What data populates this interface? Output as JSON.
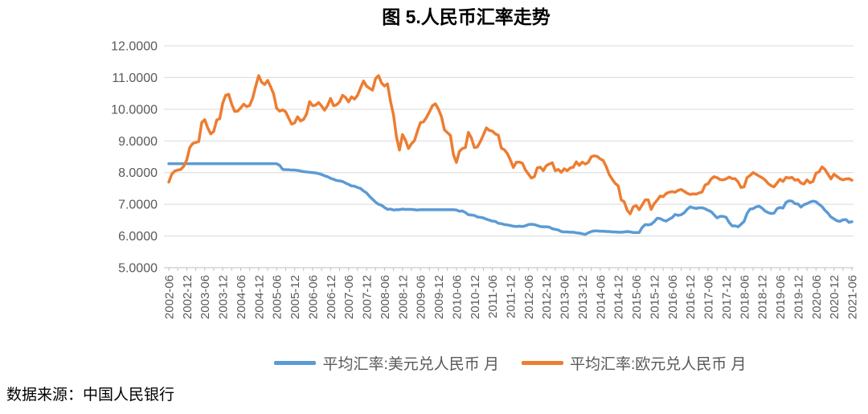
{
  "title": "图 5.人民币汇率走势",
  "source_note": "数据来源：中国人民银行",
  "colors": {
    "usd_line": "#5B9BD5",
    "eur_line": "#ED7D31",
    "gridline": "#D9D9D9",
    "axis_line": "#BFBFBF",
    "axis_text": "#595959"
  },
  "chart_data": {
    "type": "line",
    "title": "图 5.人民币汇率走势",
    "x_frequency": "monthly",
    "x_start": "2002-06",
    "x_end": "2021-06",
    "ylim": [
      5,
      12
    ],
    "grid": "horizontal",
    "legend_position": "bottom",
    "y_tick_labels": [
      "12.0000",
      "11.0000",
      "10.0000",
      "9.0000",
      "8.0000",
      "7.0000",
      "6.0000",
      "5.0000"
    ],
    "x_tick_labels": [
      "2002-06",
      "2002-12",
      "2003-06",
      "2003-12",
      "2004-06",
      "2004-12",
      "2005-06",
      "2005-12",
      "2006-06",
      "2006-12",
      "2007-06",
      "2007-12",
      "2008-06",
      "2008-12",
      "2009-06",
      "2009-12",
      "2010-06",
      "2010-12",
      "2011-06",
      "2011-12",
      "2012-06",
      "2012-12",
      "2013-06",
      "2013-12",
      "2014-06",
      "2014-12",
      "2015-06",
      "2015-12",
      "2016-06",
      "2016-12",
      "2017-06",
      "2017-12",
      "2018-06",
      "2018-12",
      "2019-06",
      "2019-12",
      "2020-06",
      "2020-12",
      "2021-06"
    ],
    "series": [
      {
        "name": "平均汇率:美元兑人民币 月",
        "color": "#5B9BD5",
        "values": [
          8.28,
          8.28,
          8.28,
          8.28,
          8.28,
          8.28,
          8.28,
          8.28,
          8.28,
          8.28,
          8.28,
          8.28,
          8.28,
          8.28,
          8.28,
          8.28,
          8.28,
          8.28,
          8.28,
          8.28,
          8.28,
          8.28,
          8.28,
          8.28,
          8.28,
          8.28,
          8.28,
          8.28,
          8.28,
          8.28,
          8.28,
          8.28,
          8.28,
          8.28,
          8.28,
          8.28,
          8.28,
          8.23,
          8.1,
          8.09,
          8.09,
          8.08,
          8.08,
          8.07,
          8.05,
          8.03,
          8.02,
          8.01,
          8.0,
          7.99,
          7.97,
          7.94,
          7.9,
          7.87,
          7.82,
          7.79,
          7.75,
          7.74,
          7.72,
          7.67,
          7.63,
          7.58,
          7.57,
          7.53,
          7.5,
          7.42,
          7.36,
          7.25,
          7.16,
          7.07,
          7.0,
          6.97,
          6.9,
          6.84,
          6.85,
          6.82,
          6.83,
          6.83,
          6.85,
          6.84,
          6.84,
          6.84,
          6.83,
          6.82,
          6.83,
          6.83,
          6.83,
          6.83,
          6.83,
          6.83,
          6.83,
          6.83,
          6.83,
          6.83,
          6.83,
          6.83,
          6.82,
          6.78,
          6.79,
          6.74,
          6.67,
          6.66,
          6.65,
          6.6,
          6.59,
          6.57,
          6.53,
          6.5,
          6.47,
          6.46,
          6.4,
          6.39,
          6.36,
          6.35,
          6.33,
          6.31,
          6.3,
          6.31,
          6.3,
          6.32,
          6.36,
          6.37,
          6.36,
          6.33,
          6.3,
          6.29,
          6.29,
          6.28,
          6.23,
          6.21,
          6.19,
          6.14,
          6.13,
          6.13,
          6.12,
          6.12,
          6.1,
          6.09,
          6.07,
          6.05,
          6.1,
          6.14,
          6.16,
          6.16,
          6.15,
          6.15,
          6.14,
          6.14,
          6.13,
          6.13,
          6.12,
          6.12,
          6.13,
          6.14,
          6.13,
          6.11,
          6.11,
          6.11,
          6.27,
          6.36,
          6.35,
          6.37,
          6.45,
          6.56,
          6.55,
          6.5,
          6.47,
          6.53,
          6.58,
          6.68,
          6.65,
          6.67,
          6.73,
          6.84,
          6.92,
          6.89,
          6.87,
          6.89,
          6.89,
          6.86,
          6.81,
          6.77,
          6.67,
          6.57,
          6.62,
          6.62,
          6.59,
          6.43,
          6.32,
          6.32,
          6.29,
          6.37,
          6.46,
          6.71,
          6.85,
          6.86,
          6.92,
          6.94,
          6.88,
          6.79,
          6.74,
          6.71,
          6.72,
          6.86,
          6.9,
          6.88,
          7.06,
          7.11,
          7.1,
          7.02,
          7.01,
          6.91,
          6.99,
          7.02,
          7.07,
          7.1,
          7.08,
          7.0,
          6.93,
          6.81,
          6.72,
          6.6,
          6.54,
          6.48,
          6.46,
          6.51,
          6.52,
          6.43,
          6.45
        ]
      },
      {
        "name": "平均汇率:欧元兑人民币 月",
        "color": "#ED7D31",
        "values": [
          7.7,
          7.95,
          8.05,
          8.08,
          8.1,
          8.2,
          8.4,
          8.79,
          8.92,
          8.95,
          8.98,
          9.58,
          9.67,
          9.41,
          9.22,
          9.3,
          9.66,
          9.7,
          10.19,
          10.44,
          10.47,
          10.16,
          9.93,
          9.94,
          10.04,
          10.16,
          10.08,
          10.12,
          10.35,
          10.72,
          11.06,
          10.85,
          10.78,
          10.91,
          10.71,
          10.48,
          10.03,
          9.94,
          9.98,
          9.92,
          9.72,
          9.53,
          9.57,
          9.76,
          9.63,
          9.68,
          9.85,
          10.24,
          10.11,
          10.13,
          10.21,
          10.1,
          9.97,
          10.12,
          10.34,
          10.11,
          10.14,
          10.23,
          10.44,
          10.37,
          10.23,
          10.39,
          10.32,
          10.44,
          10.67,
          10.89,
          10.73,
          10.66,
          10.6,
          10.96,
          11.06,
          10.83,
          10.73,
          10.8,
          10.25,
          9.82,
          9.12,
          8.71,
          9.2,
          9.02,
          8.76,
          8.91,
          9.01,
          9.31,
          9.58,
          9.6,
          9.74,
          9.92,
          10.11,
          10.17,
          10.0,
          9.77,
          9.35,
          9.26,
          9.17,
          8.57,
          8.32,
          8.67,
          8.76,
          8.79,
          9.27,
          9.09,
          8.79,
          8.81,
          8.98,
          9.19,
          9.41,
          9.33,
          9.31,
          9.22,
          9.18,
          8.77,
          8.72,
          8.6,
          8.4,
          8.16,
          8.33,
          8.33,
          8.3,
          8.09,
          7.96,
          7.83,
          7.87,
          8.15,
          8.17,
          8.06,
          8.22,
          8.27,
          8.31,
          8.06,
          8.1,
          8.01,
          8.12,
          8.06,
          8.15,
          8.17,
          8.34,
          8.23,
          8.33,
          8.27,
          8.32,
          8.5,
          8.53,
          8.51,
          8.43,
          8.38,
          8.19,
          7.94,
          7.79,
          7.66,
          7.58,
          7.14,
          7.08,
          6.81,
          6.7,
          6.92,
          6.96,
          6.83,
          6.98,
          7.14,
          7.14,
          6.84,
          7.02,
          7.13,
          7.26,
          7.24,
          7.34,
          7.38,
          7.4,
          7.38,
          7.44,
          7.47,
          7.41,
          7.35,
          7.31,
          7.33,
          7.32,
          7.36,
          7.39,
          7.61,
          7.65,
          7.8,
          7.87,
          7.84,
          7.78,
          7.77,
          7.8,
          7.86,
          7.81,
          7.81,
          7.71,
          7.53,
          7.55,
          7.84,
          7.91,
          8.0,
          7.95,
          7.89,
          7.84,
          7.77,
          7.66,
          7.59,
          7.55,
          7.67,
          7.79,
          7.72,
          7.85,
          7.83,
          7.85,
          7.76,
          7.78,
          7.67,
          7.64,
          7.77,
          7.68,
          7.72,
          7.98,
          8.02,
          8.18,
          8.1,
          7.95,
          7.8,
          7.95,
          7.88,
          7.81,
          7.77,
          7.8,
          7.81,
          7.76
        ]
      }
    ]
  }
}
